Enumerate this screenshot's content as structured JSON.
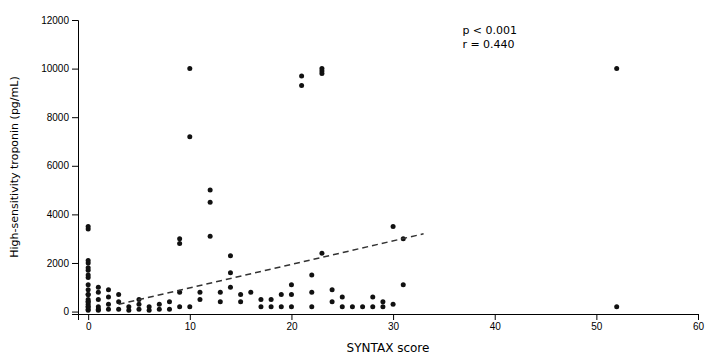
{
  "chart_data": {
    "type": "scatter",
    "xlabel": "SYNTAX score",
    "ylabel": "High-sensitivity troponin (pg/mL)",
    "annotation": "p < 0.001\nr = 0.440",
    "xlim": [
      -1,
      60
    ],
    "ylim": [
      -100,
      12000
    ],
    "xticks": [
      0,
      10,
      20,
      30,
      40,
      50,
      60
    ],
    "yticks": [
      0,
      2000,
      4000,
      6000,
      8000,
      10000,
      12000
    ],
    "grid": false,
    "series": [
      {
        "type": "scatter",
        "color": "#111111",
        "x": [
          0,
          0,
          0,
          0,
          0,
          0,
          0,
          0,
          0,
          0,
          0,
          0,
          0,
          0,
          0,
          0,
          0,
          0,
          0,
          0,
          1,
          1,
          1,
          1,
          1,
          1,
          2,
          2,
          2,
          2,
          3,
          3,
          3,
          4,
          4,
          5,
          5,
          5,
          6,
          6,
          7,
          7,
          8,
          8,
          9,
          9,
          9,
          9,
          10,
          10,
          10,
          11,
          11,
          12,
          12,
          12,
          13,
          13,
          14,
          14,
          14,
          15,
          15,
          16,
          17,
          17,
          18,
          18,
          19,
          19,
          20,
          20,
          20,
          21,
          21,
          22,
          22,
          22,
          23,
          23,
          23,
          23,
          24,
          24,
          25,
          25,
          26,
          27,
          28,
          28,
          29,
          29,
          30,
          30,
          31,
          31,
          52,
          52
        ],
        "values": [
          50,
          100,
          200,
          300,
          400,
          500,
          700,
          900,
          1100,
          1400,
          1700,
          2000,
          2100,
          3400,
          3500,
          1800,
          1500,
          700,
          400,
          200,
          50,
          100,
          200,
          500,
          800,
          1000,
          100,
          300,
          600,
          900,
          100,
          400,
          700,
          50,
          200,
          100,
          300,
          500,
          50,
          200,
          100,
          300,
          100,
          400,
          200,
          800,
          2800,
          3000,
          10000,
          200,
          7200,
          500,
          800,
          4500,
          5000,
          3100,
          400,
          800,
          1000,
          1600,
          2300,
          400,
          700,
          800,
          200,
          500,
          200,
          500,
          200,
          700,
          200,
          700,
          1100,
          9300,
          9700,
          200,
          800,
          1500,
          9900,
          10000,
          9800,
          2400,
          400,
          900,
          200,
          600,
          200,
          200,
          200,
          600,
          200,
          400,
          300,
          3500,
          1100,
          3000,
          10000,
          200
        ]
      },
      {
        "type": "line",
        "color": "#333333",
        "line_style": "dashed",
        "x": [
          3,
          33
        ],
        "values": [
          300,
          3200
        ]
      }
    ]
  }
}
